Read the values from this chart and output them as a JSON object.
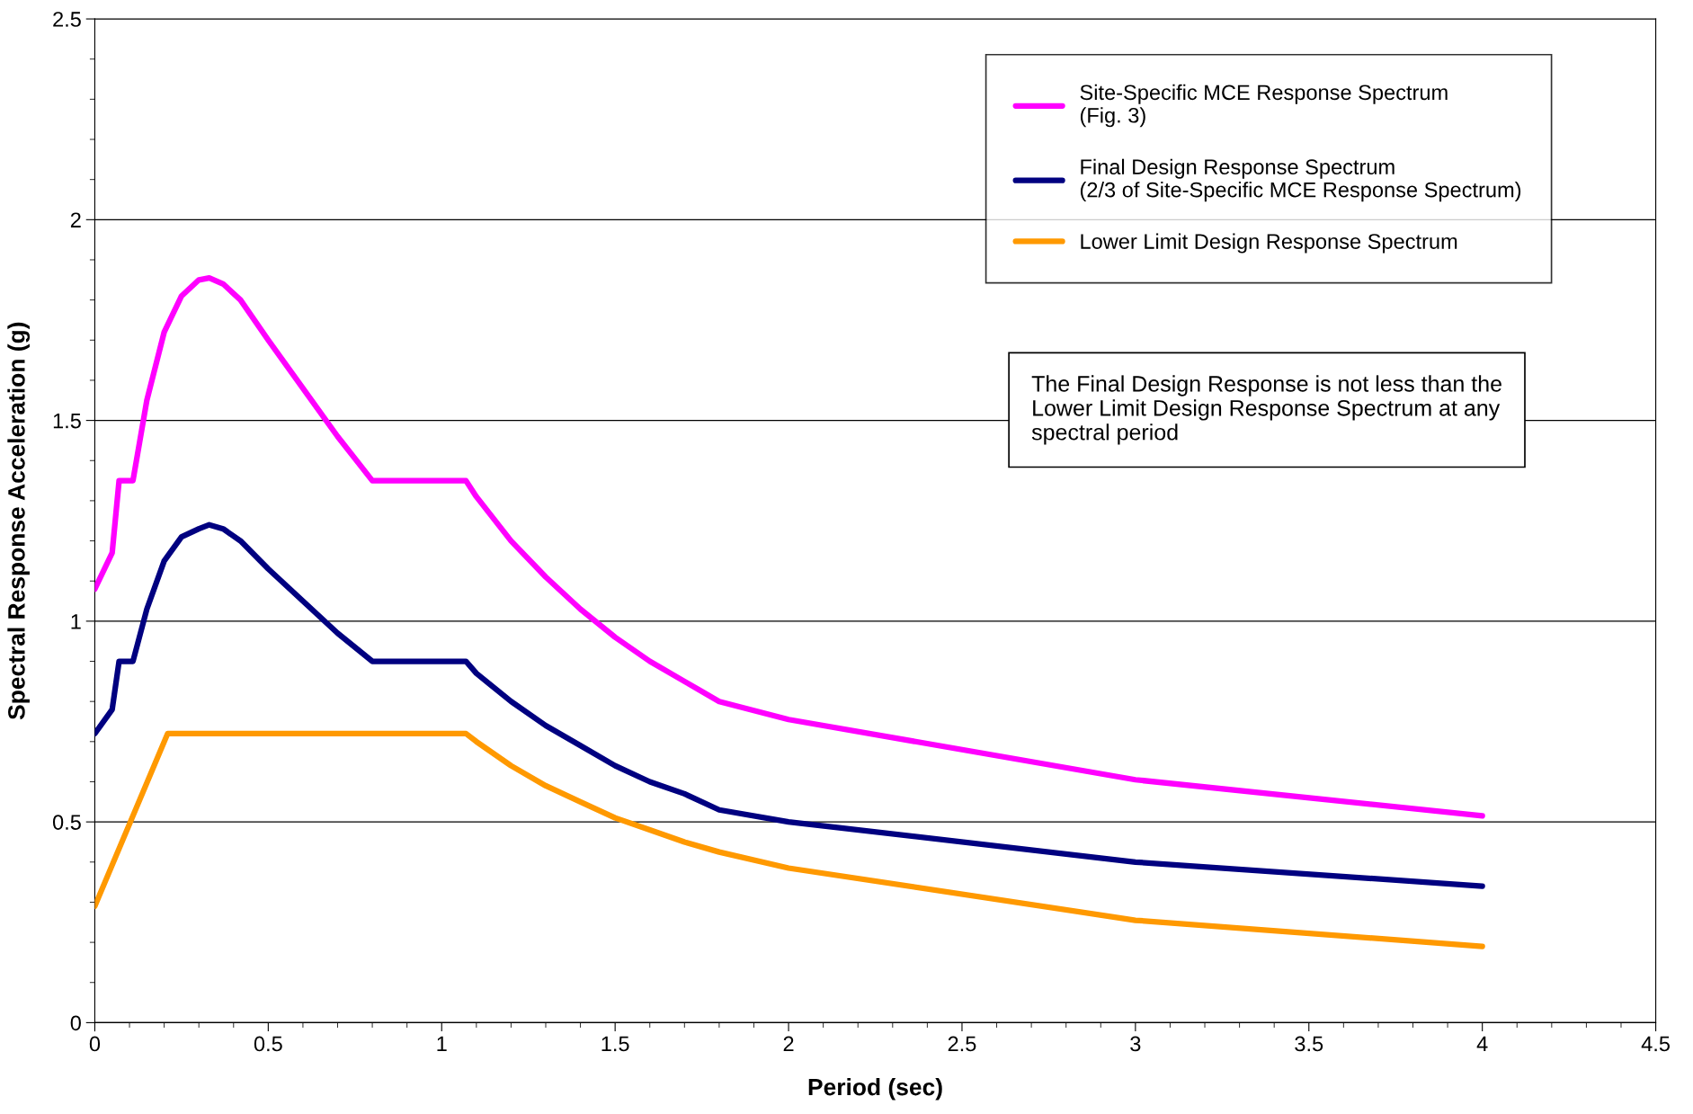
{
  "chart_data": {
    "type": "line",
    "xlabel": "Period (sec)",
    "ylabel": "Spectral Response Acceleration (g)",
    "xlim": [
      0,
      4.5
    ],
    "xticks": [
      0,
      0.5,
      1,
      1.5,
      2,
      2.5,
      3,
      3.5,
      4,
      4.5
    ],
    "ylim": [
      0,
      2.5
    ],
    "yticks": [
      0,
      0.5,
      1,
      1.5,
      2,
      2.5
    ],
    "grid": "y",
    "legend": "top right",
    "marker": "none",
    "line_style": "solid",
    "annotations": [
      "The Final Design Response is not less than the\nLower Limit Design Response Spectrum at any\nspectral period"
    ],
    "series": [
      {
        "name": "Site-Specific MCE Response Spectrum\n(Fig. 3)",
        "color": "#ff00ff",
        "x": [
          0,
          0.05,
          0.07,
          0.11,
          0.15,
          0.2,
          0.25,
          0.3,
          0.33,
          0.37,
          0.42,
          0.5,
          0.6,
          0.7,
          0.8,
          1.07,
          1.1,
          1.2,
          1.3,
          1.4,
          1.5,
          1.6,
          1.7,
          1.8,
          2.0,
          3.0,
          4.0
        ],
        "values": [
          1.08,
          1.17,
          1.35,
          1.35,
          1.55,
          1.72,
          1.81,
          1.85,
          1.855,
          1.84,
          1.8,
          1.7,
          1.58,
          1.46,
          1.35,
          1.35,
          1.31,
          1.2,
          1.11,
          1.03,
          0.96,
          0.9,
          0.85,
          0.8,
          0.755,
          0.605,
          0.515
        ]
      },
      {
        "name": "Final Design Response Spectrum\n(2/3 of Site-Specific MCE Response Spectrum)",
        "color": "#000080",
        "x": [
          0,
          0.05,
          0.07,
          0.11,
          0.15,
          0.2,
          0.25,
          0.3,
          0.33,
          0.37,
          0.42,
          0.5,
          0.6,
          0.7,
          0.8,
          1.07,
          1.1,
          1.2,
          1.3,
          1.4,
          1.5,
          1.6,
          1.7,
          1.8,
          2.0,
          3.0,
          4.0
        ],
        "values": [
          0.72,
          0.78,
          0.9,
          0.9,
          1.03,
          1.15,
          1.21,
          1.23,
          1.24,
          1.23,
          1.2,
          1.13,
          1.05,
          0.97,
          0.9,
          0.9,
          0.87,
          0.8,
          0.74,
          0.69,
          0.64,
          0.6,
          0.57,
          0.53,
          0.5,
          0.4,
          0.34
        ]
      },
      {
        "name": "Lower Limit Design Response Spectrum",
        "color": "#ff9900",
        "x": [
          0,
          0.21,
          1.07,
          1.1,
          1.2,
          1.3,
          1.4,
          1.5,
          1.6,
          1.7,
          1.8,
          2.0,
          3.0,
          4.0
        ],
        "values": [
          0.29,
          0.72,
          0.72,
          0.7,
          0.64,
          0.59,
          0.55,
          0.51,
          0.48,
          0.45,
          0.425,
          0.385,
          0.255,
          0.19
        ]
      }
    ]
  }
}
